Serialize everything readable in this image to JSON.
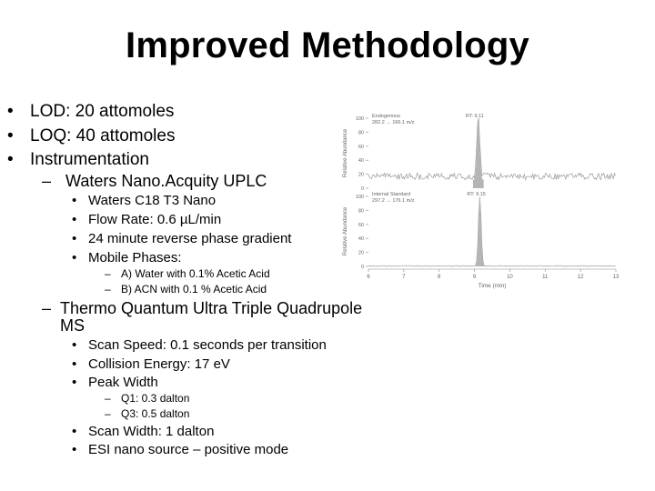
{
  "slide": {
    "title": "Improved Methodology",
    "bullets": [
      "LOD: 20 attomoles",
      "LOQ: 40 attomoles",
      "Instrumentation"
    ],
    "waters": {
      "heading": "Waters Nano.Acquity UPLC",
      "items": [
        "Waters C18 T3 Nano",
        "Flow Rate: 0.6 µL/min",
        "24 minute reverse phase gradient",
        "Mobile Phases:"
      ],
      "phases": [
        "A) Water with 0.1% Acetic Acid",
        "B) ACN with 0.1 % Acetic Acid"
      ]
    },
    "thermo": {
      "heading_line1": "Thermo Quantum Ultra Triple Quadrupole",
      "heading_line2": "MS",
      "items": [
        "Scan Speed: 0.1 seconds per transition",
        "Collision Energy: 17 eV",
        "Peak Width"
      ],
      "peak_width": [
        "Q1: 0.3 dalton",
        "Q3: 0.5 dalton"
      ],
      "items2": [
        "Scan Width: 1 dalton",
        "ESI nano source – positive mode"
      ]
    }
  },
  "chart_data": {
    "type": "line",
    "xlabel": "Time (min)",
    "xlim": [
      6,
      13
    ],
    "x_ticks": [
      "6",
      "7",
      "8",
      "9",
      "10",
      "11",
      "12",
      "13"
    ],
    "panels": [
      {
        "name": "Endogenous",
        "transition": "282.2 → 166.1 m/z",
        "rt_label": "RT: 9.11",
        "ylabel": "Relative Abundance",
        "y_ticks": [
          "100",
          "80",
          "60",
          "40",
          "20",
          "0"
        ],
        "ylim": [
          0,
          100
        ]
      },
      {
        "name": "Internal Standard",
        "transition": "297.2 → 176.1 m/z",
        "rt_label": "RT: 9.15",
        "ylabel": "Relative Abundance",
        "y_ticks": [
          "100",
          "80",
          "60",
          "40",
          "20",
          "0"
        ],
        "ylim": [
          0,
          100
        ]
      }
    ]
  }
}
